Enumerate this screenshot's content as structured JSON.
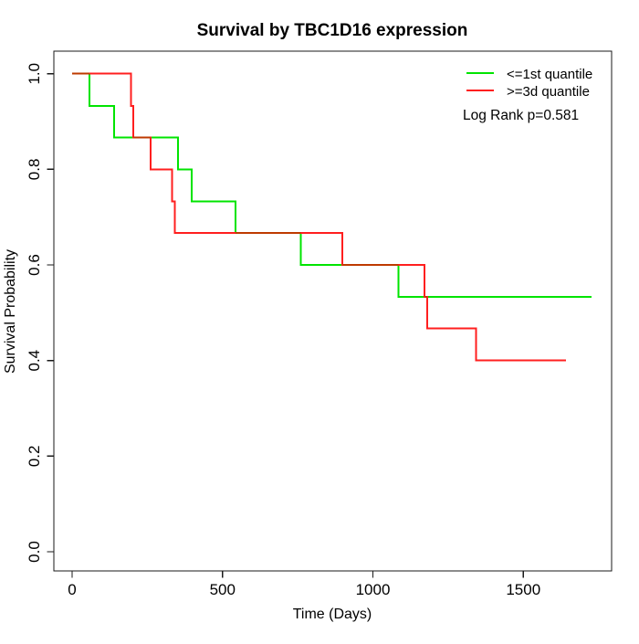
{
  "chart_data": {
    "type": "line",
    "chart_style": "kaplan-meier-step",
    "title": "Survival by TBC1D16 expression",
    "xlabel": "Time (Days)",
    "ylabel": "Survival Probability",
    "xlim": [
      0,
      1790
    ],
    "ylim": [
      0.0,
      1.0
    ],
    "grid": false,
    "legend_position": "top-right",
    "annotation": "Log Rank p=0.581",
    "x_ticks": [
      {
        "label": "0",
        "value": 0
      },
      {
        "label": "500",
        "value": 500
      },
      {
        "label": "1000",
        "value": 1000
      },
      {
        "label": "1500",
        "value": 1500
      }
    ],
    "y_ticks": [
      {
        "label": "0.0",
        "value": 0.0
      },
      {
        "label": "0.2",
        "value": 0.2
      },
      {
        "label": "0.4",
        "value": 0.4
      },
      {
        "label": "0.6",
        "value": 0.6
      },
      {
        "label": "0.8",
        "value": 0.8
      },
      {
        "label": "1.0",
        "value": 1.0
      }
    ],
    "series": [
      {
        "name": "<=1st quantile",
        "color": "#00E400",
        "points": [
          [
            0,
            1.0
          ],
          [
            57,
            1.0
          ],
          [
            57,
            0.933
          ],
          [
            140,
            0.933
          ],
          [
            140,
            0.867
          ],
          [
            352,
            0.867
          ],
          [
            352,
            0.8
          ],
          [
            397,
            0.8
          ],
          [
            397,
            0.733
          ],
          [
            544,
            0.733
          ],
          [
            544,
            0.667
          ],
          [
            760,
            0.667
          ],
          [
            760,
            0.6
          ],
          [
            1085,
            0.6
          ],
          [
            1085,
            0.533
          ],
          [
            1727,
            0.533
          ]
        ]
      },
      {
        "name": ">=3d quantile",
        "color": "#FF1F1F",
        "points": [
          [
            0,
            1.0
          ],
          [
            195,
            1.0
          ],
          [
            195,
            0.933
          ],
          [
            203,
            0.933
          ],
          [
            203,
            0.867
          ],
          [
            261,
            0.867
          ],
          [
            261,
            0.8
          ],
          [
            332,
            0.8
          ],
          [
            332,
            0.733
          ],
          [
            342,
            0.733
          ],
          [
            342,
            0.667
          ],
          [
            898,
            0.667
          ],
          [
            898,
            0.6
          ],
          [
            1171,
            0.6
          ],
          [
            1171,
            0.533
          ],
          [
            1180,
            0.533
          ],
          [
            1180,
            0.467
          ],
          [
            1343,
            0.467
          ],
          [
            1343,
            0.4
          ],
          [
            1642,
            0.4
          ]
        ]
      }
    ],
    "overlap_color": "#BE3A00"
  }
}
